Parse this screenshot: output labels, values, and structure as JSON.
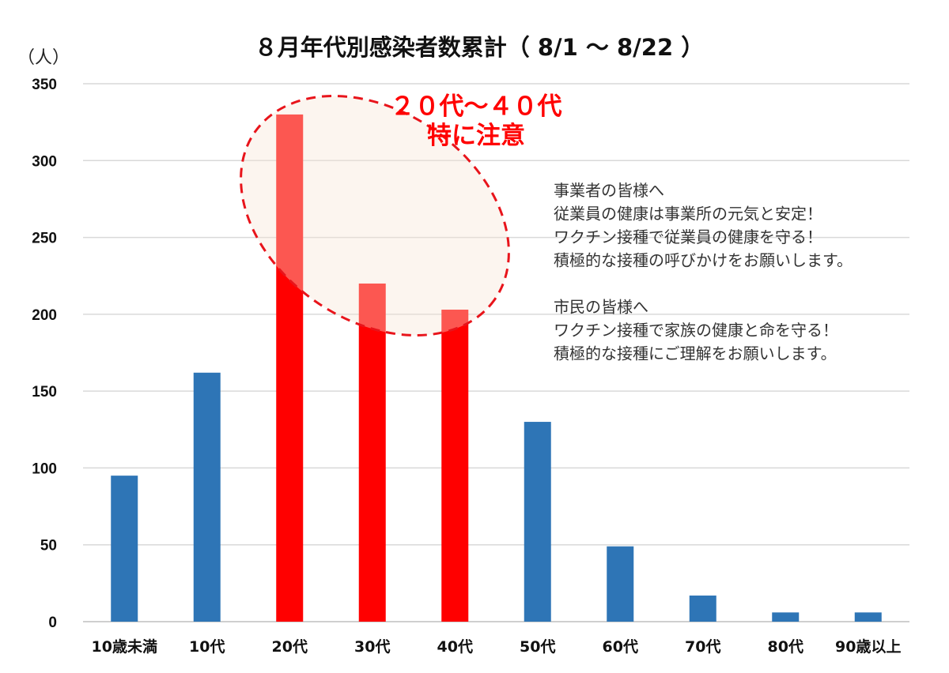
{
  "chart_data": {
    "type": "bar",
    "title": "８月年代別感染者数累計（ 8/1 〜 8/22 ）",
    "unit_label": "（人）",
    "categories": [
      "10歳未満",
      "10代",
      "20代",
      "30代",
      "40代",
      "50代",
      "60代",
      "70代",
      "80代",
      "90歳以上"
    ],
    "values": [
      95,
      162,
      330,
      220,
      203,
      130,
      49,
      17,
      6,
      6
    ],
    "highlight_categories": [
      "20代",
      "30代",
      "40代"
    ],
    "ylim": [
      0,
      350
    ],
    "yticks": [
      0,
      50,
      100,
      150,
      200,
      250,
      300,
      350
    ],
    "grid": true,
    "legend": "none",
    "colors": {
      "bar": "#2e75b6",
      "highlight": "#ff0000",
      "callout": "#ff0000"
    },
    "annotations": {
      "callout_lines": [
        "２０代〜４０代",
        "特に注意"
      ],
      "note_lines": [
        "事業者の皆様へ",
        "従業員の健康は事業所の元気と安定！",
        "ワクチン接種で従業員の健康を守る！",
        "積極的な接種の呼びかけをお願いします。",
        "",
        "市民の皆様へ",
        "ワクチン接種で家族の健康と命を守る！",
        "積極的な接種にご理解をお願いします。"
      ]
    }
  }
}
